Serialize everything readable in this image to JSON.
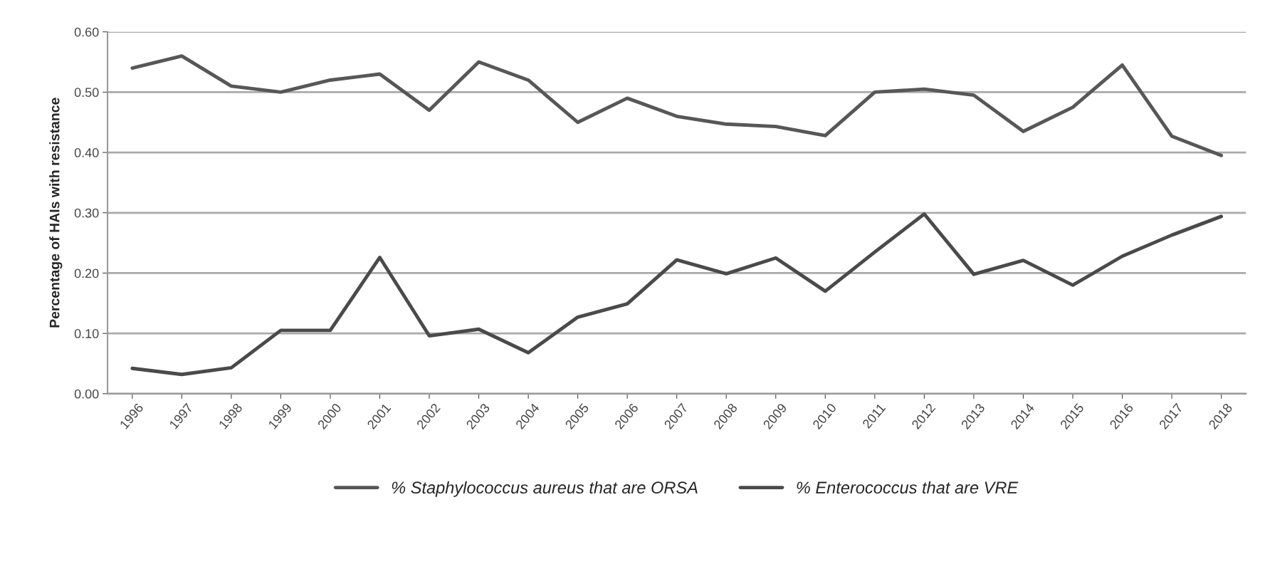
{
  "chart_data": {
    "type": "line",
    "ylabel": "Percentage of HAIs with resistance",
    "categories": [
      "1996",
      "1997",
      "1998",
      "1999",
      "2000",
      "2001",
      "2002",
      "2003",
      "2004",
      "2005",
      "2006",
      "2007",
      "2008",
      "2009",
      "2010",
      "2011",
      "2012",
      "2013",
      "2014",
      "2015",
      "2016",
      "2017",
      "2018"
    ],
    "series": [
      {
        "name": "% Staphylococcus aureus that are ORSA",
        "color": "#575757",
        "values": [
          0.54,
          0.56,
          0.51,
          0.5,
          0.52,
          0.53,
          0.47,
          0.55,
          0.52,
          0.45,
          0.49,
          0.46,
          0.447,
          0.443,
          0.428,
          0.5,
          0.505,
          0.495,
          0.435,
          0.475,
          0.545,
          0.427,
          0.395
        ]
      },
      {
        "name": "% Enterococcus that are VRE",
        "color": "#4a4a4a",
        "values": [
          0.042,
          0.032,
          0.043,
          0.105,
          0.105,
          0.226,
          0.096,
          0.107,
          0.068,
          0.127,
          0.149,
          0.222,
          0.199,
          0.225,
          0.17,
          0.235,
          0.298,
          0.198,
          0.221,
          0.18,
          0.228,
          0.263,
          0.294
        ]
      }
    ],
    "ylim": [
      0,
      0.6
    ],
    "yticks": [
      {
        "value": 0,
        "label": "0.00"
      },
      {
        "value": 0.1,
        "label": "0.10"
      },
      {
        "value": 0.2,
        "label": "0.20"
      },
      {
        "value": 0.3,
        "label": "0.30"
      },
      {
        "value": 0.4,
        "label": "0.40"
      },
      {
        "value": 0.5,
        "label": "0.50"
      },
      {
        "value": 0.6,
        "label": "0.60"
      }
    ],
    "grid": "y",
    "legend": "bottom",
    "marker": "none",
    "line_style": "solid"
  }
}
